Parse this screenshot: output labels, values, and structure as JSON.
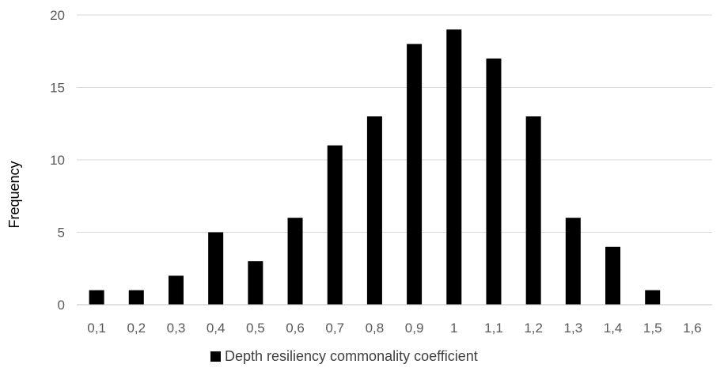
{
  "chart_data": {
    "type": "bar",
    "categories": [
      "0,1",
      "0,2",
      "0,3",
      "0,4",
      "0,5",
      "0,6",
      "0,7",
      "0,8",
      "0,9",
      "1",
      "1,1",
      "1,2",
      "1,3",
      "1,4",
      "1,5",
      "1,6"
    ],
    "series": [
      {
        "name": "Depth resiliency commonality coefficient",
        "values": [
          1,
          1,
          2,
          5,
          3,
          6,
          11,
          13,
          18,
          19,
          17,
          13,
          6,
          4,
          1,
          0
        ]
      }
    ],
    "xlabel": "",
    "ylabel": "Frequency",
    "ylim": [
      0,
      20
    ],
    "yticks": [
      "0",
      "5",
      "10",
      "15",
      "20"
    ],
    "grid": true,
    "legend_position": "bottom",
    "colors": {
      "bar": "#000000",
      "grid": "#d9d9d9",
      "axis": "#bfbfbf"
    }
  }
}
